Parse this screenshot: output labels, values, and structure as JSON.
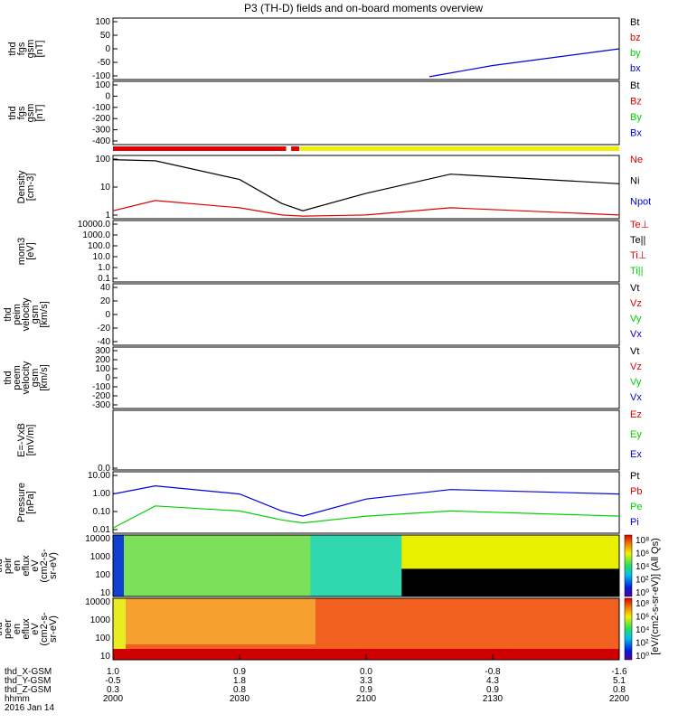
{
  "title": "P3 (TH-D) fields and on-board moments overview",
  "colors": {
    "black": "#000000",
    "red": "#e00000",
    "green": "#00d000",
    "blue": "#0000e0",
    "yellow": "#f0f000"
  },
  "panels": [
    {
      "id": "fgs-low",
      "ylabel": [
        "thd",
        "fgs",
        "gsm",
        "[nT]"
      ],
      "ticks": [
        "100",
        "50",
        "0",
        "-50",
        "-100"
      ],
      "legend": [
        {
          "t": "Bt",
          "c": "black"
        },
        {
          "t": "bz",
          "c": "red"
        },
        {
          "t": "by",
          "c": "green"
        },
        {
          "t": "bx",
          "c": "blue"
        }
      ]
    },
    {
      "id": "fgs-high",
      "ylabel": [
        "thd",
        "fgs",
        "gsm",
        "[nT]"
      ],
      "ticks": [
        "100",
        "0",
        "-100",
        "-200",
        "-300",
        "-400"
      ],
      "legend": [
        {
          "t": "Bt",
          "c": "black"
        },
        {
          "t": "Bz",
          "c": "red"
        },
        {
          "t": "By",
          "c": "green"
        },
        {
          "t": "Bx",
          "c": "blue"
        }
      ]
    },
    {
      "id": "density",
      "ylabel": [
        "Density",
        "[cm-3]"
      ],
      "ticks": [
        "100",
        "10",
        "1"
      ],
      "legend": [
        {
          "t": "Ne",
          "c": "red"
        },
        {
          "t": "Ni",
          "c": "black"
        },
        {
          "t": "Npot",
          "c": "blue"
        }
      ]
    },
    {
      "id": "temp",
      "ylabel": [
        "mom3",
        "[eV]"
      ],
      "ticks": [
        "10000.0",
        "1000.0",
        "100.0",
        "10.0",
        "1.0",
        "0.1"
      ],
      "legend": [
        {
          "t": "Te⊥",
          "c": "red"
        },
        {
          "t": "Te||",
          "c": "black"
        },
        {
          "t": "Ti⊥",
          "c": "red"
        },
        {
          "t": "Ti||",
          "c": "green"
        }
      ]
    },
    {
      "id": "vel-e",
      "ylabel": [
        "thd",
        "peim",
        "velocity",
        "gsm",
        "[km/s]"
      ],
      "ticks": [
        "40",
        "20",
        "0",
        "-20",
        "-40"
      ],
      "legend": [
        {
          "t": "Vt",
          "c": "black"
        },
        {
          "t": "Vz",
          "c": "red"
        },
        {
          "t": "Vy",
          "c": "green"
        },
        {
          "t": "Vx",
          "c": "blue"
        }
      ]
    },
    {
      "id": "vel-i",
      "ylabel": [
        "thd",
        "peem",
        "velocity",
        "gsm",
        "[km/s]"
      ],
      "ticks": [
        "300",
        "200",
        "100",
        "0",
        "-100",
        "-200",
        "-300"
      ],
      "legend": [
        {
          "t": "Vt",
          "c": "black"
        },
        {
          "t": "Vz",
          "c": "red"
        },
        {
          "t": "Vy",
          "c": "green"
        },
        {
          "t": "Vx",
          "c": "blue"
        }
      ]
    },
    {
      "id": "efield",
      "ylabel": [
        "E=-VxB",
        "[mV/m]"
      ],
      "ticks": [
        "0.0"
      ],
      "legend": [
        {
          "t": "Ez",
          "c": "red"
        },
        {
          "t": "Ey",
          "c": "green"
        },
        {
          "t": "Ex",
          "c": "blue"
        }
      ]
    },
    {
      "id": "pressure",
      "ylabel": [
        "Pressure",
        "[nPa]"
      ],
      "ticks": [
        "10.00",
        "1.00",
        "0.10",
        "0.01"
      ],
      "legend": [
        {
          "t": "Pt",
          "c": "black"
        },
        {
          "t": "Pb",
          "c": "red"
        },
        {
          "t": "Pe",
          "c": "green"
        },
        {
          "t": "Pi",
          "c": "blue"
        }
      ]
    },
    {
      "id": "peir",
      "ylabel": [
        "thd",
        "peir",
        "en",
        "eflux",
        "eV",
        "(cm2-s-",
        "sr-eV)"
      ],
      "ticks": [
        "10000",
        "1000",
        "100",
        "10"
      ],
      "legend": []
    },
    {
      "id": "peer",
      "ylabel": [
        "thd",
        "peer",
        "en",
        "eflux",
        "eV",
        "(cm2-s-",
        "sr-eV)"
      ],
      "ticks": [
        "10000",
        "1000",
        "100",
        "10"
      ],
      "legend": []
    }
  ],
  "colorbar": {
    "label": "[eV/(cm2-s-sr-eV)] (All Qs)",
    "ticks": [
      "10⁸",
      "10⁶",
      "10⁴",
      "10²",
      "10⁰"
    ]
  },
  "xaxis": {
    "rows": [
      {
        "name": "thd_X-GSM",
        "values": [
          "1.0",
          "0.9",
          "0.0",
          "-0.8",
          "-1.6"
        ]
      },
      {
        "name": "thd_Y-GSM",
        "values": [
          "-0.5",
          "1.8",
          "3.3",
          "4.3",
          "5.1"
        ]
      },
      {
        "name": "thd_Z-GSM",
        "values": [
          "0.3",
          "0.8",
          "0.9",
          "0.9",
          "0.8"
        ]
      },
      {
        "name": "hhmm",
        "values": [
          "2000",
          "2030",
          "2100",
          "2130",
          "2200"
        ]
      }
    ],
    "date": "2016 Jan 14"
  },
  "chart_data": {
    "type": "line",
    "title": "P3 (TH-D) fields and on-board moments overview",
    "x": [
      "2000",
      "2030",
      "2100",
      "2130",
      "2200"
    ],
    "xlabel": "hhmm",
    "series": [
      {
        "name": "Ni",
        "panel": "density",
        "x": [
          "2000",
          "2010",
          "2030",
          "2040",
          "2045",
          "2100",
          "2120",
          "2200"
        ],
        "values": [
          200,
          180,
          30,
          3,
          1.5,
          8,
          50,
          20
        ]
      },
      {
        "name": "Ne",
        "panel": "density",
        "x": [
          "2000",
          "2010",
          "2030",
          "2040",
          "2045",
          "2100",
          "2120",
          "2200"
        ],
        "values": [
          1.5,
          4,
          2,
          1,
          0.9,
          1,
          2,
          1
        ]
      },
      {
        "name": "Pi",
        "panel": "pressure",
        "x": [
          "2000",
          "2010",
          "2030",
          "2040",
          "2045",
          "2100",
          "2120",
          "2200"
        ],
        "values": [
          1,
          3,
          1,
          0.1,
          0.05,
          0.5,
          1.8,
          1
        ]
      },
      {
        "name": "Pe",
        "panel": "pressure",
        "x": [
          "2000",
          "2010",
          "2030",
          "2040",
          "2045",
          "2100",
          "2120",
          "2200"
        ],
        "values": [
          0.01,
          0.2,
          0.1,
          0.03,
          0.02,
          0.05,
          0.1,
          0.05
        ]
      },
      {
        "name": "bx",
        "panel": "fgs-low",
        "x": [
          "2115",
          "2130",
          "2200"
        ],
        "values": [
          -100,
          -60,
          0
        ]
      }
    ]
  }
}
